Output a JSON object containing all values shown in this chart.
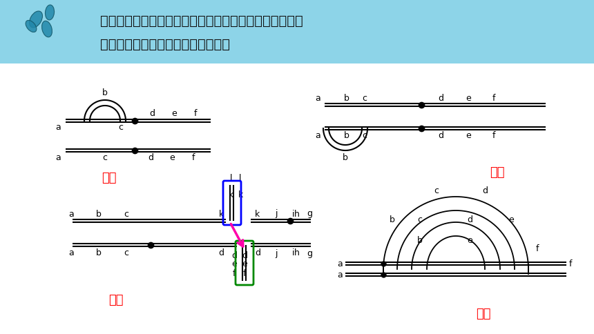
{
  "bg_color": "#ffffff",
  "header_bg": "#8dd4e8",
  "header_text_line1": "下图为显微镜观察的变异杂合子染色体联会异常现象，通",
  "header_text_line2": "过图示辨析染色体结构变异的类型。",
  "label_queshi": "缺失",
  "label_chongfu": "重复",
  "label_yiwei": "易位",
  "label_dawei": "倒位",
  "red_color": "#ff0000",
  "blue_color": "#0000ff",
  "green_color": "#008800",
  "pink_color": "#ff00aa",
  "black_color": "#000000"
}
